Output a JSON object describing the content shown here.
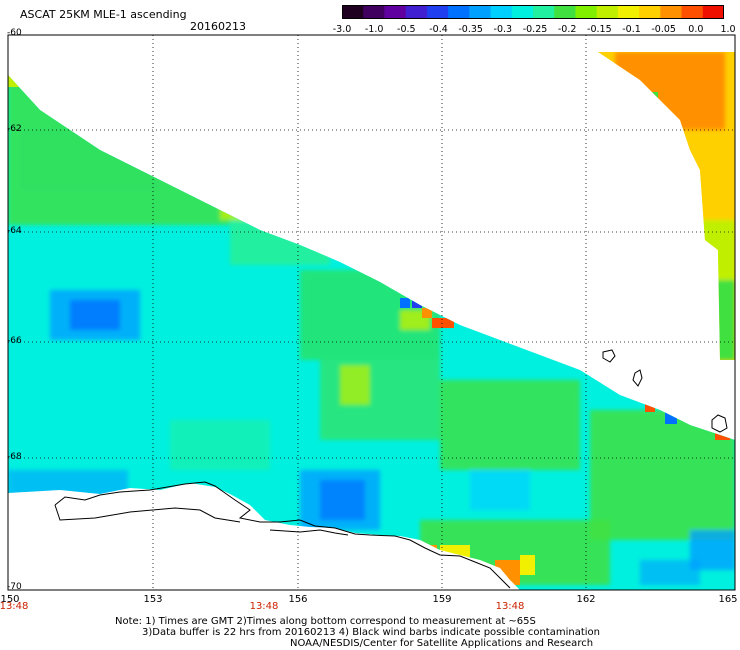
{
  "header": {
    "title": "ASCAT 25KM MLE-1 ascending",
    "date": "20160213"
  },
  "colorbar": {
    "labels": [
      "-3.0",
      "-1.0",
      "-0.5",
      "-0.4",
      "-0.35",
      "-0.3",
      "-0.25",
      "-0.2",
      "-0.15",
      "-0.1",
      "-0.05",
      "0.0",
      "1.0"
    ],
    "colors": [
      "#200020",
      "#400060",
      "#6000a0",
      "#4020d0",
      "#2040f0",
      "#0070ff",
      "#00a0ff",
      "#00d0ff",
      "#00f0e0",
      "#20f0a0",
      "#40e040",
      "#80f000",
      "#c0f000",
      "#f0f000",
      "#ffd000",
      "#ff9000",
      "#ff5000",
      "#f01000"
    ]
  },
  "axes": {
    "lat_labels": [
      "-60",
      "-62",
      "-64",
      "-66",
      "-68",
      "-70"
    ],
    "lon_labels": [
      "150",
      "153",
      "156",
      "159",
      "162",
      "165"
    ],
    "time_labels": [
      "13:48",
      "13:48",
      "13:48"
    ]
  },
  "notes": {
    "line1": "Note: 1) Times are GMT 2)Times along bottom correspond to measurement at ~65S",
    "line2": "3)Data buffer is 22 hrs from 20160213 4) Black wind barbs indicate possible contamination",
    "line3": "NOAA/NESDIS/Center for Satellite Applications and Research"
  }
}
